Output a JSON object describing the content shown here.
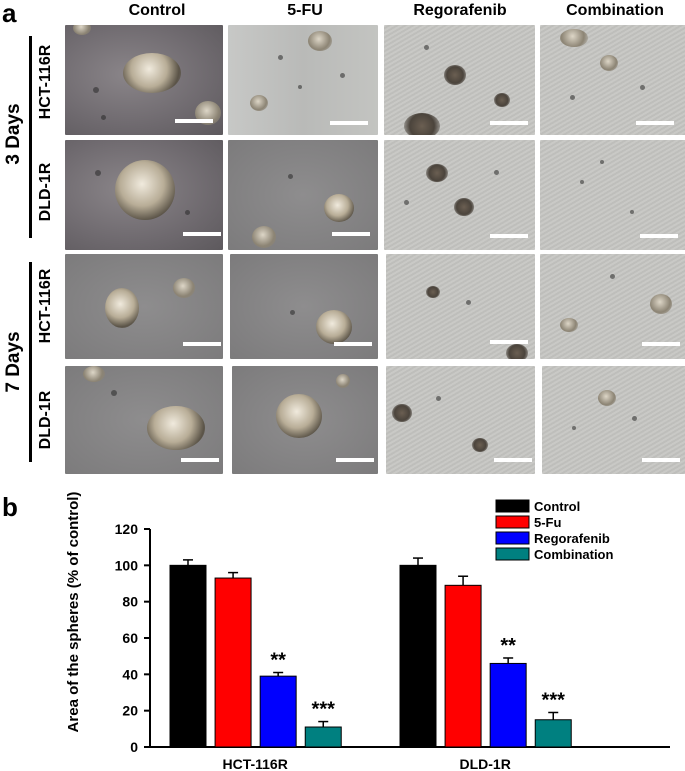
{
  "panel_a": {
    "letter": "a",
    "columns": [
      "Control",
      "5-FU",
      "Regorafenib",
      "Combination"
    ],
    "groups": [
      {
        "label": "3 Days",
        "rows": [
          "HCT-116R",
          "DLD-1R"
        ]
      },
      {
        "label": "7 Days",
        "rows": [
          "HCT-116R",
          "DLD-1R"
        ]
      }
    ]
  },
  "panel_b": {
    "letter": "b"
  },
  "colors": {
    "control": "#000000",
    "five_fu": "#ff0000",
    "regorafenib": "#0000ff",
    "combination": "#008080"
  },
  "chart_data": {
    "type": "bar",
    "title": "",
    "xlabel": "",
    "ylabel": "Area of the spheres (% of control)",
    "ylim": [
      0,
      120
    ],
    "yticks": [
      "0",
      "20",
      "40",
      "60",
      "80",
      "100",
      "120"
    ],
    "categories": [
      "HCT-116R",
      "DLD-1R"
    ],
    "legend_position": "top-right",
    "series": [
      {
        "name": "Control",
        "color": "#000000",
        "values": [
          100,
          100
        ],
        "errors": [
          3,
          4
        ],
        "annotations": [
          "",
          ""
        ]
      },
      {
        "name": "5-Fu",
        "color": "#ff0000",
        "values": [
          93,
          89
        ],
        "errors": [
          3,
          5
        ],
        "annotations": [
          "",
          ""
        ]
      },
      {
        "name": "Regorafenib",
        "color": "#0000ff",
        "values": [
          39,
          46
        ],
        "errors": [
          2,
          3
        ],
        "annotations": [
          "**",
          "**"
        ]
      },
      {
        "name": "Combination",
        "color": "#008080",
        "values": [
          11,
          15
        ],
        "errors": [
          3,
          4
        ],
        "annotations": [
          "***",
          "***"
        ]
      }
    ]
  }
}
